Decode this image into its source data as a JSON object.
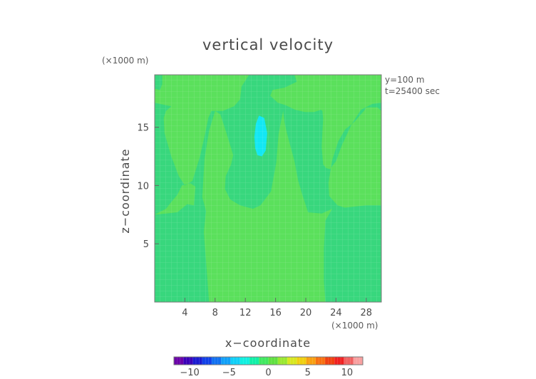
{
  "chart_data": {
    "type": "heatmap",
    "title": "vertical velocity",
    "xlabel": "x−coordinate",
    "ylabel": "z−coordinate",
    "x_unit": "(×1000 m)",
    "y_unit": "(×1000 m)",
    "xlim": [
      0,
      30
    ],
    "ylim": [
      0,
      19.5
    ],
    "x_ticks": [
      4,
      8,
      12,
      16,
      20,
      24,
      28
    ],
    "y_ticks": [
      5,
      10,
      15
    ],
    "annotations": [
      "y=100 m",
      "t=25400 sec"
    ],
    "colorbar": {
      "range": [
        -12,
        12
      ],
      "ticks": [
        -10,
        -5,
        0,
        5,
        10
      ],
      "tick_labels": [
        "−10",
        "−5",
        "0",
        "5",
        "10"
      ],
      "colors": [
        "#6a00a8",
        "#3a00b8",
        "#1a1ad0",
        "#1040e8",
        "#1070f0",
        "#10a0f8",
        "#10d0f8",
        "#10f0e0",
        "#10f0a8",
        "#40e860",
        "#60e040",
        "#9ae830",
        "#d8e820",
        "#f0d010",
        "#f8a010",
        "#f87010",
        "#f04010",
        "#f02020",
        "#f06060",
        "#f8a0a0"
      ]
    },
    "fields": {
      "background": "#5be05c",
      "region_dark": "#38d77d",
      "region_cyan": "#12e7f3"
    },
    "regions": [
      {
        "name": "left-column",
        "level": "slightly negative",
        "outline": [
          [
            0,
            19.5
          ],
          [
            1,
            19.5
          ],
          [
            1,
            18.7
          ],
          [
            0.7,
            18.2
          ],
          [
            0,
            18.3
          ],
          [
            0,
            17.1
          ],
          [
            2.2,
            16.8
          ],
          [
            1.5,
            16.4
          ],
          [
            1.2,
            15.8
          ],
          [
            1.3,
            14.5
          ],
          [
            2.2,
            12.5
          ],
          [
            3.2,
            10.8
          ],
          [
            4,
            10
          ],
          [
            5,
            10.4
          ],
          [
            6,
            12.5
          ],
          [
            6.7,
            14.5
          ],
          [
            7.1,
            15.8
          ],
          [
            7.5,
            16.4
          ],
          [
            9,
            16.4
          ],
          [
            10.5,
            16.8
          ],
          [
            11.3,
            17.4
          ],
          [
            11.5,
            18.5
          ],
          [
            12.5,
            19.5
          ],
          [
            18.5,
            19.5
          ],
          [
            18.8,
            18.9
          ],
          [
            17.2,
            18.4
          ],
          [
            15.6,
            18.2
          ],
          [
            15.3,
            17.7
          ],
          [
            16.3,
            17.1
          ],
          [
            17.3,
            16.9
          ],
          [
            18.6,
            16.5
          ],
          [
            19.9,
            16.3
          ],
          [
            21.1,
            16.3
          ],
          [
            22,
            16.5
          ],
          [
            22.2,
            16.4
          ],
          [
            22.3,
            15.7
          ],
          [
            22.2,
            14.6
          ],
          [
            22.1,
            13.3
          ],
          [
            22.3,
            11.8
          ],
          [
            22.7,
            11.5
          ],
          [
            23.2,
            11.4
          ],
          [
            24,
            12.1
          ],
          [
            24.8,
            13.5
          ],
          [
            26.1,
            15.3
          ],
          [
            27.3,
            16.5
          ],
          [
            28.8,
            17
          ],
          [
            30,
            17.1
          ],
          [
            30,
            16.4
          ],
          [
            29.5,
            16.7
          ],
          [
            28,
            16.7
          ],
          [
            27.7,
            16.4
          ],
          [
            26.5,
            15.5
          ],
          [
            25.2,
            14.8
          ],
          [
            24.3,
            13.8
          ],
          [
            23.5,
            12.2
          ],
          [
            23,
            10.2
          ],
          [
            23.1,
            9.1
          ],
          [
            24.2,
            8.3
          ],
          [
            25.2,
            8.1
          ],
          [
            26.5,
            8.2
          ],
          [
            28,
            8.3
          ],
          [
            30,
            8.3
          ],
          [
            30,
            0
          ],
          [
            22.6,
            0
          ],
          [
            22.4,
            1.8
          ],
          [
            22.4,
            4.6
          ],
          [
            22.6,
            7
          ],
          [
            23.5,
            8
          ],
          [
            22.1,
            7.6
          ],
          [
            20.3,
            7.7
          ],
          [
            19.5,
            9.3
          ],
          [
            19,
            10.4
          ],
          [
            18.5,
            12.1
          ],
          [
            17.5,
            14.5
          ],
          [
            17.2,
            15.4
          ],
          [
            17,
            16.4
          ],
          [
            16.4,
            14.4
          ],
          [
            16.1,
            12
          ],
          [
            15.4,
            9.5
          ],
          [
            14,
            8.3
          ],
          [
            13,
            8
          ],
          [
            11.3,
            8.3
          ],
          [
            10,
            8.8
          ],
          [
            9.3,
            9.7
          ],
          [
            9.4,
            10.8
          ],
          [
            10.1,
            11.8
          ],
          [
            10.4,
            12.6
          ],
          [
            9.5,
            14.5
          ],
          [
            8.7,
            16.1
          ],
          [
            8,
            16.4
          ],
          [
            7.2,
            14.7
          ],
          [
            6.6,
            12.3
          ],
          [
            6.3,
            9
          ],
          [
            6.8,
            7.8
          ],
          [
            6.5,
            6
          ],
          [
            6.8,
            3.5
          ],
          [
            7,
            1.8
          ],
          [
            7.2,
            0
          ],
          [
            0,
            0
          ],
          [
            0,
            7.5
          ],
          [
            1.5,
            7.6
          ],
          [
            3,
            7.7
          ],
          [
            4.3,
            8.4
          ],
          [
            5.2,
            8.3
          ],
          [
            5.4,
            9.9
          ],
          [
            4.7,
            10.2
          ],
          [
            3.6,
            10
          ],
          [
            3,
            9.2
          ],
          [
            2.1,
            8.5
          ],
          [
            1.5,
            8
          ],
          [
            0,
            7.5
          ]
        ]
      },
      {
        "name": "updraft-core",
        "level": "cyan",
        "outline": [
          [
            13.3,
            13.2
          ],
          [
            13.6,
            12.6
          ],
          [
            14.2,
            12.5
          ],
          [
            14.7,
            13.0
          ],
          [
            14.9,
            14.5
          ],
          [
            14.5,
            15.8
          ],
          [
            13.8,
            16.0
          ],
          [
            13.4,
            15.3
          ],
          [
            13.2,
            14.2
          ],
          [
            13.3,
            13.2
          ]
        ]
      }
    ]
  }
}
